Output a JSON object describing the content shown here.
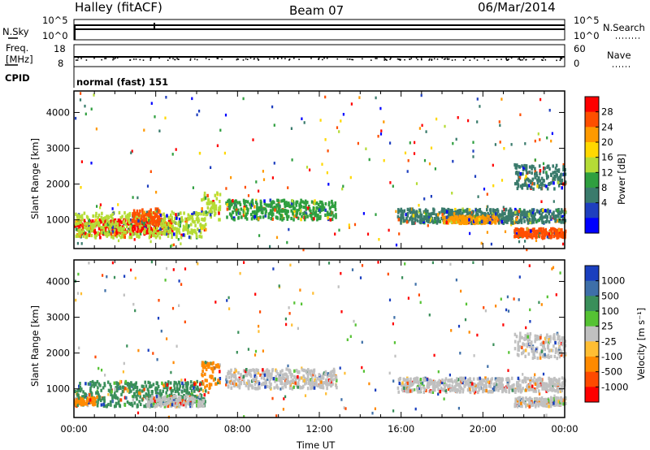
{
  "header": {
    "station": "Halley (fitACF)",
    "beam": "Beam 07",
    "date": "06/Mar/2014"
  },
  "panel_labels": {
    "nsky": "N.Sky",
    "nsearch": "N.Search",
    "freq_line1": "Freq.",
    "freq_line2": "[MHz]",
    "nave": "Nave",
    "cpid": "CPID",
    "cpid_value": "normal (fast) 151"
  },
  "chart_data": [
    {
      "type": "line",
      "title": "",
      "ylabel": "N.Sky",
      "ylabel_right": "N.Search",
      "y_ticks_left": [
        "10^5",
        "10^0"
      ],
      "y_ticks_right": [
        "10^5",
        "10^0"
      ],
      "x_ticks": [
        "00:00",
        "04:00",
        "08:00",
        "12:00",
        "16:00",
        "20:00",
        "00:00"
      ],
      "series": [
        {
          "name": "N.Sky",
          "values": "near 10^4 throughout the day"
        },
        {
          "name": "N.Search",
          "values": "near 10^4 throughout the day"
        }
      ]
    },
    {
      "type": "scatter",
      "ylabel": "Freq. [MHz]",
      "ylabel_right": "Nave",
      "ylim": [
        8,
        18
      ],
      "ylim_right": [
        0,
        60
      ],
      "y_ticks_left": [
        "18",
        "8"
      ],
      "y_ticks_right": [
        "60",
        "0"
      ],
      "series": [
        {
          "name": "Freq. [MHz]",
          "values": "about 10 MHz throughout the day"
        },
        {
          "name": "Nave",
          "values": "about 20 scattered throughout the day"
        }
      ]
    },
    {
      "type": "heatmap",
      "name": "Power",
      "xlabel": "",
      "ylabel": "Slant Range [km]",
      "xlim": [
        "00:00",
        "24:00"
      ],
      "ylim": [
        200,
        4600
      ],
      "y_ticks": [
        "4000",
        "3000",
        "2000",
        "1000"
      ],
      "colorbar": {
        "label": "Power [dB]",
        "ticks": [
          "28",
          "24",
          "20",
          "16",
          "12",
          "8",
          "4"
        ],
        "colors": [
          "#ff0000",
          "#ff4f00",
          "#ff9a00",
          "#ffd800",
          "#b5dc36",
          "#2f9f3f",
          "#3a7b6c",
          "#1f3fbf",
          "#0000ff"
        ]
      },
      "regions": [
        {
          "t_start": 0.0,
          "t_end": 4.8,
          "r_start": 650,
          "r_end": 1050,
          "value": 28
        },
        {
          "t_start": 0.0,
          "t_end": 6.4,
          "r_start": 550,
          "r_end": 1250,
          "value": 14
        },
        {
          "t_start": 2.8,
          "t_end": 4.2,
          "r_start": 900,
          "r_end": 1350,
          "value": 26
        },
        {
          "t_start": 6.2,
          "t_end": 7.1,
          "r_start": 1050,
          "r_end": 1800,
          "value": 14
        },
        {
          "t_start": 7.4,
          "t_end": 12.8,
          "r_start": 1050,
          "r_end": 1600,
          "value": 10
        },
        {
          "t_start": 15.8,
          "t_end": 24.0,
          "r_start": 950,
          "r_end": 1350,
          "value": 8
        },
        {
          "t_start": 18.0,
          "t_end": 20.6,
          "r_start": 950,
          "r_end": 1150,
          "value": 22
        },
        {
          "t_start": 21.5,
          "t_end": 24.0,
          "r_start": 550,
          "r_end": 800,
          "value": 24
        },
        {
          "t_start": 21.5,
          "t_end": 24.0,
          "r_start": 1900,
          "r_end": 2600,
          "value": 8
        }
      ]
    },
    {
      "type": "heatmap",
      "name": "Velocity",
      "xlabel": "Time UT",
      "ylabel": "Slant Range [km]",
      "xlim": [
        "00:00",
        "24:00"
      ],
      "ylim": [
        200,
        4600
      ],
      "y_ticks": [
        "4000",
        "3000",
        "2000",
        "1000"
      ],
      "x_ticks": [
        "00:00",
        "04:00",
        "08:00",
        "12:00",
        "16:00",
        "20:00",
        "00:00"
      ],
      "colorbar": {
        "label": "Velocity [m s⁻¹]",
        "ticks": [
          "1000",
          "500",
          "100",
          "25",
          "-25",
          "-100",
          "-500",
          "-1000"
        ],
        "colors": [
          "#1a3fbf",
          "#3e6fa8",
          "#3a8f5a",
          "#55c233",
          "#c0c0c0",
          "#ffbe33",
          "#ff8a00",
          "#ff4a00",
          "#ff0000"
        ]
      },
      "regions": [
        {
          "t_start": 0.0,
          "t_end": 6.4,
          "r_start": 550,
          "r_end": 1250,
          "value": 200
        },
        {
          "t_start": 3.5,
          "t_end": 6.3,
          "r_start": 550,
          "r_end": 850,
          "value": 0
        },
        {
          "t_start": 0.0,
          "t_end": 1.0,
          "r_start": 600,
          "r_end": 800,
          "value": -150
        },
        {
          "t_start": 6.2,
          "t_end": 7.1,
          "r_start": 1050,
          "r_end": 1800,
          "value": -300
        },
        {
          "t_start": 7.4,
          "t_end": 12.8,
          "r_start": 1050,
          "r_end": 1600,
          "value": 0
        },
        {
          "t_start": 15.8,
          "t_end": 24.0,
          "r_start": 950,
          "r_end": 1350,
          "value": 0
        },
        {
          "t_start": 21.5,
          "t_end": 24.0,
          "r_start": 550,
          "r_end": 800,
          "value": 0
        },
        {
          "t_start": 21.5,
          "t_end": 24.0,
          "r_start": 1900,
          "r_end": 2600,
          "value": 0
        }
      ]
    }
  ]
}
